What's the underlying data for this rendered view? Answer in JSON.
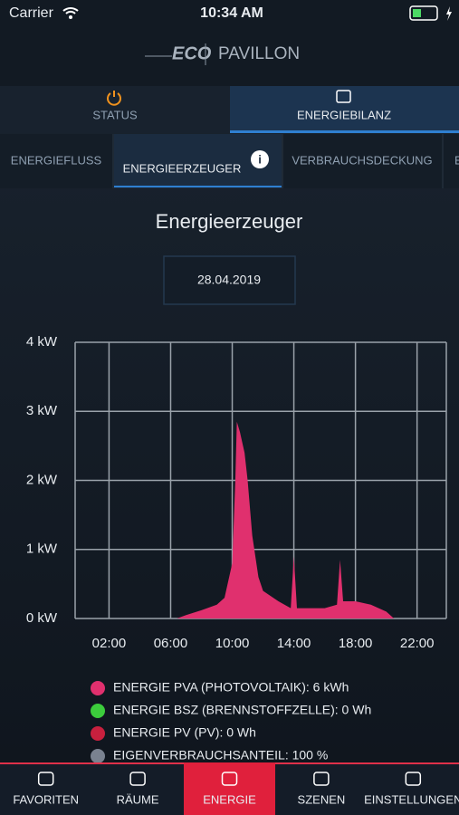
{
  "status_bar": {
    "carrier": "Carrier",
    "time": "10:34 AM"
  },
  "header": {
    "logo": "ECO",
    "title": "PAVILLON"
  },
  "tabs": [
    "STATUS",
    "ENERGIEBILANZ"
  ],
  "subtabs": [
    "ENERGIEFLUSS",
    "ENERGIEERZEUGER",
    "VERBRAUCHSDECKUNG",
    "E"
  ],
  "page_title": "Energieerzeuger",
  "date": "28.04.2019",
  "chart_data": {
    "type": "area",
    "x": [
      6.4,
      7,
      8,
      9,
      9.5,
      10,
      10.2,
      10.3,
      10.5,
      10.8,
      11,
      11.3,
      11.7,
      12,
      13,
      13.8,
      14,
      14.2,
      15,
      16,
      16.8,
      17,
      17.2,
      18,
      19,
      20,
      20.5
    ],
    "series": [
      {
        "name": "ENERGIE PVA (PHOTOVOLTAIK): 6 kWh",
        "color": "#e0306e",
        "values": [
          0,
          0.05,
          0.12,
          0.2,
          0.3,
          0.8,
          2.0,
          2.85,
          2.7,
          2.4,
          2.0,
          1.2,
          0.6,
          0.4,
          0.25,
          0.15,
          0.9,
          0.15,
          0.15,
          0.15,
          0.2,
          0.85,
          0.25,
          0.25,
          0.2,
          0.1,
          0
        ]
      }
    ],
    "xlim": [
      -0.2,
      23.9
    ],
    "xticks": [
      {
        "value": 2,
        "label": "02:00"
      },
      {
        "value": 6,
        "label": "06:00"
      },
      {
        "value": 10,
        "label": "10:00"
      },
      {
        "value": 14,
        "label": "14:00"
      },
      {
        "value": 18,
        "label": "18:00"
      },
      {
        "value": 22,
        "label": "22:00"
      }
    ],
    "ylim": [
      0,
      4
    ],
    "yticks": [
      {
        "value": 0,
        "label": "0 kW"
      },
      {
        "value": 1,
        "label": "1 kW"
      },
      {
        "value": 2,
        "label": "2 kW"
      },
      {
        "value": 3,
        "label": "3 kW"
      },
      {
        "value": 4,
        "label": "4 kW"
      }
    ],
    "grid": true
  },
  "legend": [
    {
      "label": "ENERGIE BSZ (BRENNSTOFFZELLE): 0 Wh",
      "color": "#3ccc3c"
    },
    {
      "label": "ENERGIE PV (PV): 0 Wh",
      "color": "#c8203e"
    },
    {
      "label": "EIGENVERBRAUCHSANTEIL: 100 %",
      "color": "#7a8290"
    }
  ],
  "nav": [
    "FAVORITEN",
    "RÄUME",
    "ENERGIE",
    "SZENEN",
    "EINSTELLUNGEN"
  ]
}
